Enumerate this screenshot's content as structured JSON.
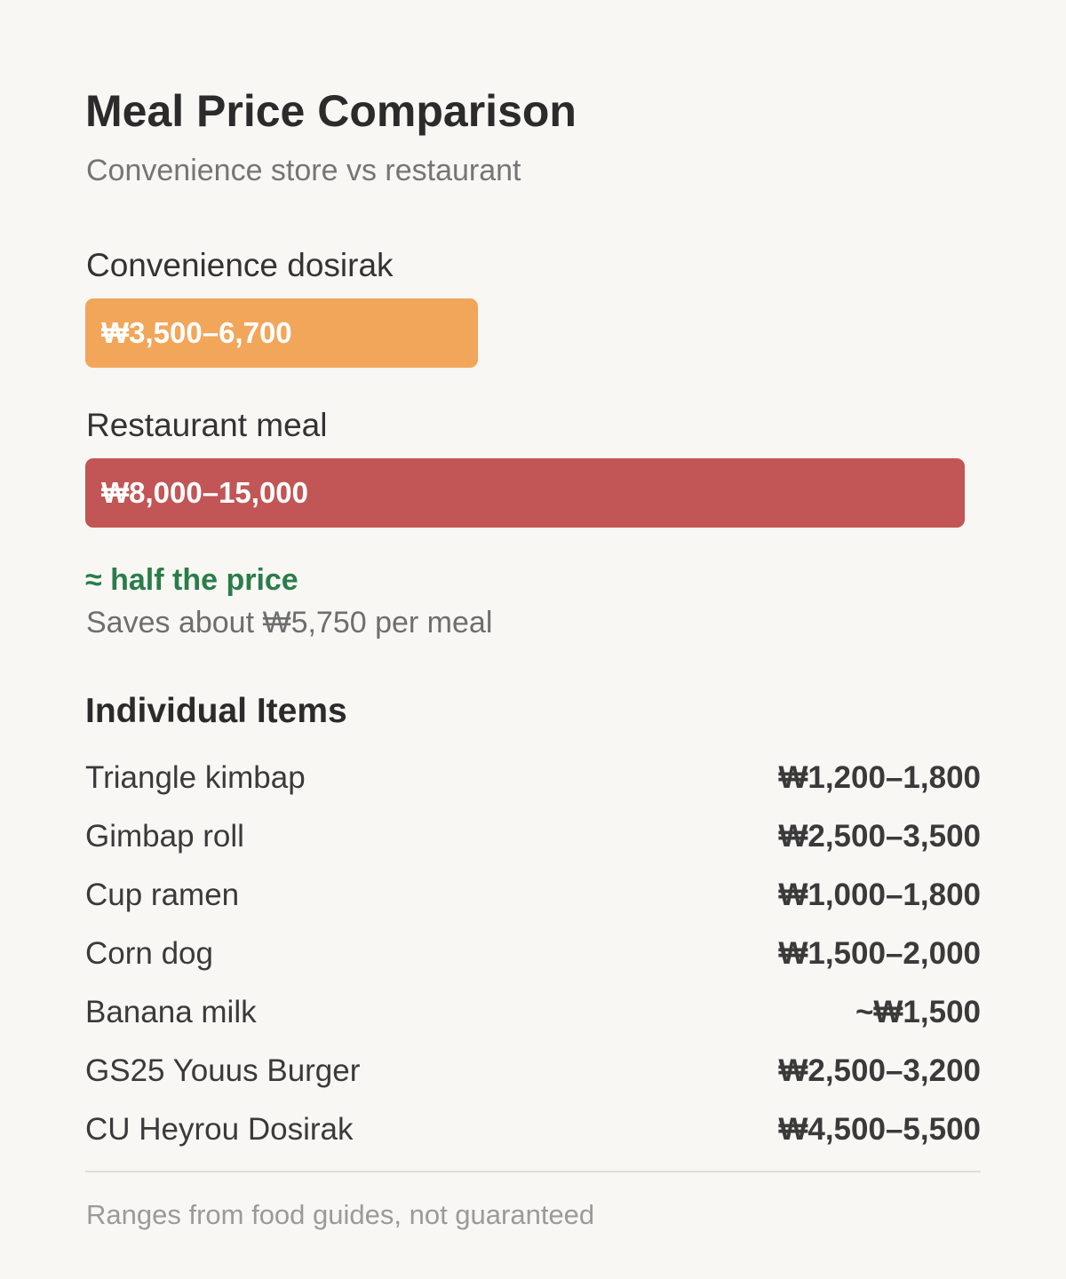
{
  "header": {
    "title": "Meal Price Comparison",
    "subtitle": "Convenience store vs restaurant"
  },
  "colors": {
    "background": "#f9f7f4",
    "convenience_bar": "#f2a65a",
    "restaurant_bar": "#c25555",
    "highlight": "#2a7d4a"
  },
  "chart_data": {
    "type": "bar",
    "orientation": "horizontal",
    "categories": [
      "Convenience dosirak",
      "Restaurant meal"
    ],
    "value_labels": [
      "₩3,500–6,700",
      "₩8,000–15,000"
    ],
    "ranges": [
      [
        3500,
        6700
      ],
      [
        8000,
        15000
      ]
    ],
    "values": [
      6700,
      15000
    ],
    "bar_colors": [
      "#f2a65a",
      "#c25555"
    ],
    "xlim": [
      0,
      15000
    ]
  },
  "comparison": {
    "highlight": "≈ half the price",
    "savings": "Saves about ₩5,750 per meal"
  },
  "items_section": {
    "heading": "Individual Items",
    "items": [
      {
        "name": "Triangle kimbap",
        "price": "₩1,200–1,800"
      },
      {
        "name": "Gimbap roll",
        "price": "₩2,500–3,500"
      },
      {
        "name": "Cup ramen",
        "price": "₩1,000–1,800"
      },
      {
        "name": "Corn dog",
        "price": "₩1,500–2,000"
      },
      {
        "name": "Banana milk",
        "price": "~₩1,500"
      },
      {
        "name": "GS25 Youus Burger",
        "price": "₩2,500–3,200"
      },
      {
        "name": "CU Heyrou Dosirak",
        "price": "₩4,500–5,500"
      }
    ]
  },
  "footnote": "Ranges from food guides, not guaranteed"
}
